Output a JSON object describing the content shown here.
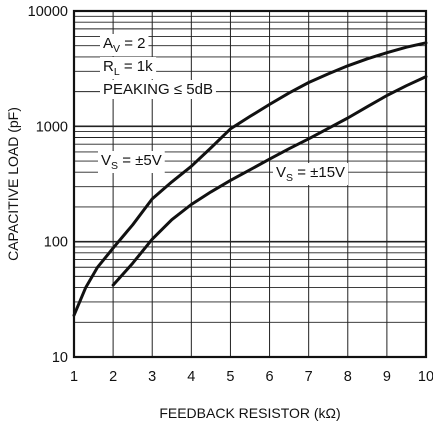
{
  "chart_data": {
    "type": "line",
    "xlabel": "FEEDBACK RESISTOR (kΩ)",
    "ylabel": "CAPACITIVE LOAD (pF)",
    "x_scale": "linear",
    "y_scale": "log",
    "xlim": [
      1,
      10
    ],
    "ylim": [
      10,
      10000
    ],
    "x_ticks": [
      "1",
      "2",
      "3",
      "4",
      "5",
      "6",
      "7",
      "8",
      "9",
      "10"
    ],
    "y_ticks": [
      "10",
      "100",
      "1000",
      "10000"
    ],
    "grid": true,
    "annotations": [
      {
        "parts": [
          {
            "text": "A"
          },
          {
            "text": "V",
            "sub": true
          },
          {
            "text": " = 2"
          }
        ]
      },
      {
        "parts": [
          {
            "text": "R"
          },
          {
            "text": "L",
            "sub": true
          },
          {
            "text": " = 1k"
          }
        ]
      },
      {
        "parts": [
          {
            "text": "PEAKING ≤ 5dB"
          }
        ]
      }
    ],
    "series": [
      {
        "name": "VS = ±5V",
        "label_parts": [
          {
            "text": "V"
          },
          {
            "text": "S",
            "sub": true
          },
          {
            "text": " = ±5V"
          }
        ],
        "x": [
          1.0,
          1.3,
          1.6,
          2.0,
          2.5,
          3.0,
          3.5,
          4.0,
          4.5,
          5.0,
          5.5,
          6.0,
          6.5,
          7.0,
          7.5,
          8.0,
          8.5,
          9.0,
          9.5,
          10.0
        ],
        "y": [
          23,
          40,
          60,
          88,
          140,
          235,
          330,
          450,
          650,
          950,
          1220,
          1550,
          1950,
          2400,
          2850,
          3350,
          3850,
          4350,
          4850,
          5300
        ]
      },
      {
        "name": "VS = ±15V",
        "label_parts": [
          {
            "text": "V"
          },
          {
            "text": "S",
            "sub": true
          },
          {
            "text": " = ±15V"
          }
        ],
        "x": [
          2.0,
          2.5,
          3.0,
          3.5,
          4.0,
          4.5,
          5.0,
          5.5,
          6.0,
          6.5,
          7.0,
          7.5,
          8.0,
          8.5,
          9.0,
          9.5,
          10.0
        ],
        "y": [
          42,
          65,
          105,
          155,
          210,
          270,
          340,
          420,
          520,
          640,
          780,
          960,
          1180,
          1480,
          1850,
          2250,
          2700
        ]
      }
    ]
  }
}
